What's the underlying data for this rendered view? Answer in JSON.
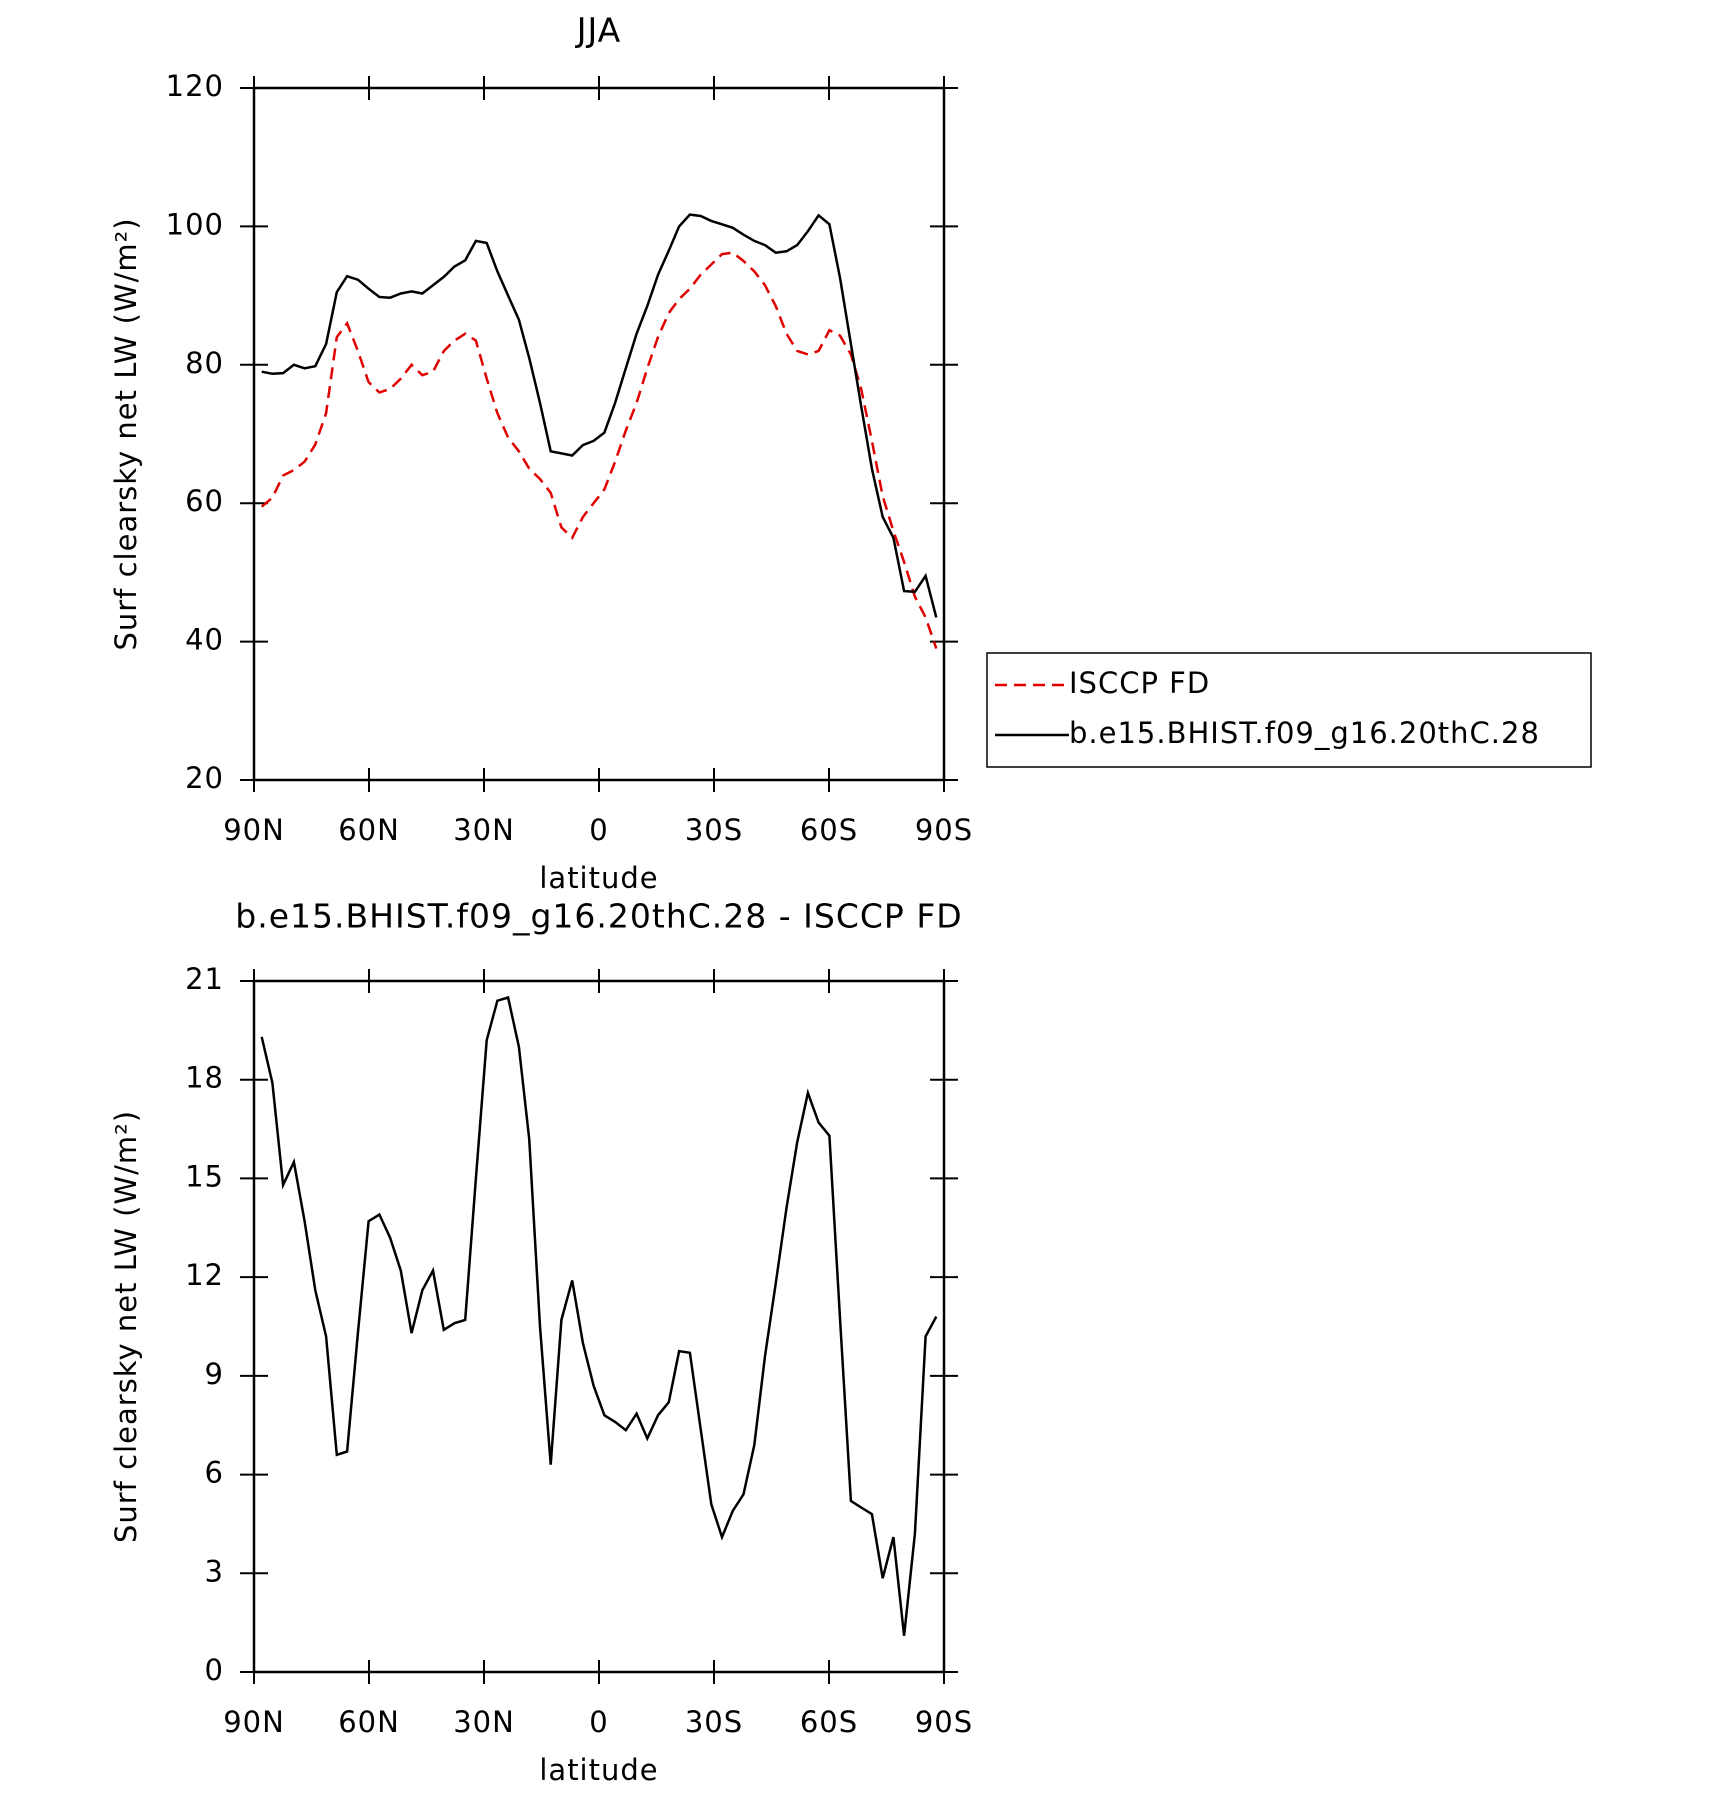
{
  "chart_data": [
    {
      "type": "line",
      "title": "JJA",
      "xlabel": "latitude",
      "ylabel": "Surf clearsky net LW (W/m²)",
      "xlim": [
        90,
        -90
      ],
      "ylim": [
        20,
        120
      ],
      "xticks": [
        {
          "value": 90,
          "label": "90N"
        },
        {
          "value": 60,
          "label": "60N"
        },
        {
          "value": 30,
          "label": "30N"
        },
        0,
        {
          "value": -30,
          "label": "30S"
        },
        {
          "value": -60,
          "label": "60S"
        },
        {
          "value": -90,
          "label": "90S"
        }
      ],
      "yticks": [
        20,
        40,
        60,
        80,
        100,
        120
      ],
      "x": [
        88.0,
        85.2,
        82.4,
        79.6,
        76.8,
        74.0,
        71.2,
        68.4,
        65.7,
        62.9,
        60.1,
        57.3,
        54.5,
        51.7,
        48.9,
        46.1,
        43.3,
        40.5,
        37.7,
        34.9,
        32.1,
        29.3,
        26.5,
        23.7,
        20.9,
        18.2,
        15.4,
        12.6,
        9.8,
        7.0,
        4.2,
        1.4,
        -1.4,
        -4.2,
        -7.0,
        -9.8,
        -12.6,
        -15.4,
        -18.2,
        -20.9,
        -23.7,
        -26.5,
        -29.3,
        -32.1,
        -34.9,
        -37.7,
        -40.5,
        -43.3,
        -46.1,
        -48.9,
        -51.7,
        -54.5,
        -57.3,
        -60.1,
        -62.9,
        -65.7,
        -68.4,
        -71.2,
        -74.0,
        -76.8,
        -79.6,
        -82.4,
        -85.2,
        -88.0
      ],
      "series": [
        {
          "name": "ISCCP FD",
          "color": "#e00000",
          "dash": true,
          "values": [
            59.5,
            60.8,
            64,
            64.8,
            66,
            68.5,
            73,
            84,
            86,
            82,
            77.5,
            76,
            76.5,
            78,
            80,
            78.5,
            79,
            82,
            83.5,
            84.5,
            83.5,
            78,
            73,
            69.5,
            67.5,
            65,
            63.5,
            61.5,
            56.5,
            55,
            58,
            60,
            62,
            66,
            70.5,
            74.5,
            79.5,
            84,
            87.5,
            89.5,
            91,
            93,
            94.5,
            96,
            96.2,
            95,
            93.5,
            91.5,
            88.5,
            84.5,
            82,
            81.5,
            82,
            85,
            84.2,
            81.5,
            76.5,
            69,
            61,
            56,
            51.5,
            46.5,
            43.5,
            39
          ]
        },
        {
          "name": "b.e15.BHIST.f09_g16.20thC.28",
          "color": "#000000",
          "dash": false,
          "values": [
            79,
            78.7,
            78.8,
            80,
            79.5,
            79.8,
            83,
            90.5,
            92.8,
            92.3,
            91,
            89.8,
            89.7,
            90.3,
            90.6,
            90.3,
            91.5,
            92.7,
            94.2,
            95.1,
            97.9,
            97.6,
            93.5,
            90,
            86.5,
            81,
            74.5,
            67.5,
            67.2,
            66.9,
            68.4,
            69,
            70.2,
            74.5,
            79.5,
            84.5,
            88.5,
            93,
            96.5,
            100,
            101.7,
            101.5,
            100.8,
            100.3,
            99.8,
            98.8,
            97.9,
            97.3,
            96.2,
            96.4,
            97.3,
            99.3,
            101.6,
            100.3,
            92.5,
            83,
            74,
            65,
            58,
            55,
            47.3,
            47.2,
            49.5,
            43.5
          ]
        }
      ]
    },
    {
      "type": "line",
      "title": "b.e15.BHIST.f09_g16.20thC.28 - ISCCP FD",
      "xlabel": "latitude",
      "ylabel": "Surf clearsky net LW (W/m²)",
      "xlim": [
        90,
        -90
      ],
      "ylim": [
        0,
        21
      ],
      "xticks": [
        {
          "value": 90,
          "label": "90N"
        },
        {
          "value": 60,
          "label": "60N"
        },
        {
          "value": 30,
          "label": "30N"
        },
        0,
        {
          "value": -30,
          "label": "30S"
        },
        {
          "value": -60,
          "label": "60S"
        },
        {
          "value": -90,
          "label": "90S"
        }
      ],
      "yticks": [
        0,
        3,
        6,
        9,
        12,
        15,
        18,
        21
      ],
      "x": [
        88.0,
        85.2,
        82.4,
        79.6,
        76.8,
        74.0,
        71.2,
        68.4,
        65.7,
        62.9,
        60.1,
        57.3,
        54.5,
        51.7,
        48.9,
        46.1,
        43.3,
        40.5,
        37.7,
        34.9,
        32.1,
        29.3,
        26.5,
        23.7,
        20.9,
        18.2,
        15.4,
        12.6,
        9.8,
        7.0,
        4.2,
        1.4,
        -1.4,
        -4.2,
        -7.0,
        -9.8,
        -12.6,
        -15.4,
        -18.2,
        -20.9,
        -23.7,
        -26.5,
        -29.3,
        -32.1,
        -34.9,
        -37.7,
        -40.5,
        -43.3,
        -46.1,
        -48.9,
        -51.7,
        -54.5,
        -57.3,
        -60.1,
        -62.9,
        -65.7,
        -68.4,
        -71.2,
        -74.0,
        -76.8,
        -79.6,
        -82.4,
        -85.2,
        -88.0
      ],
      "series": [
        {
          "color": "#000000",
          "dash": false,
          "values": [
            19.3,
            17.9,
            14.8,
            15.5,
            13.7,
            11.6,
            10.2,
            6.6,
            6.7,
            10.3,
            13.7,
            13.9,
            13.2,
            12.2,
            10.3,
            11.6,
            12.2,
            10.4,
            10.6,
            10.7,
            15,
            19.2,
            20.4,
            20.5,
            19,
            16.2,
            10.5,
            6.3,
            10.7,
            11.9,
            10,
            8.7,
            7.8,
            7.6,
            7.35,
            7.85,
            7.1,
            7.8,
            8.2,
            9.75,
            9.7,
            7.4,
            5.1,
            4.1,
            4.9,
            5.4,
            6.9,
            9.6,
            11.8,
            14.1,
            16.1,
            17.6,
            16.7,
            16.3,
            10.7,
            5.2,
            5,
            4.8,
            2.85,
            4.1,
            1.1,
            4.2,
            10.2,
            10.8
          ]
        }
      ]
    }
  ]
}
